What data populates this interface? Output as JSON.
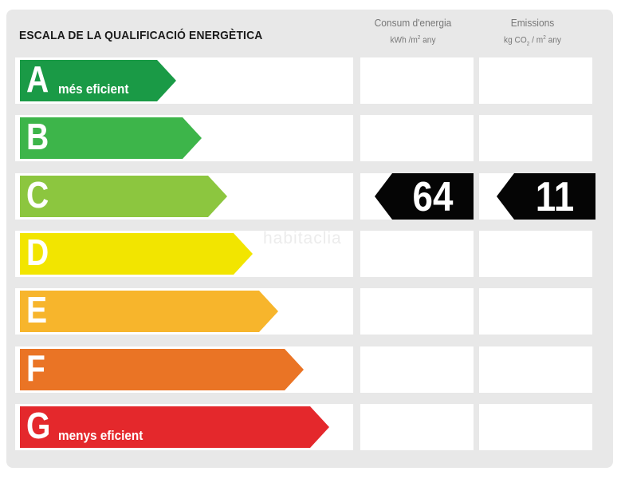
{
  "title": "ESCALA DE LA QUALIFICACIÓ ENERGÈTICA",
  "columns": {
    "consum": {
      "label": "Consum d'energia",
      "unit_prefix": "kWh /m",
      "unit_exp": "2",
      "unit_suffix": " any"
    },
    "emissions": {
      "label": "Emissions",
      "unit_prefix": "kg CO",
      "unit_sub": "2",
      "unit_mid": " / m",
      "unit_exp": "2",
      "unit_suffix": " any"
    }
  },
  "watermark": "habitaclia",
  "classes": [
    {
      "letter": "A",
      "note": "més eficient",
      "color": "#1a9a46"
    },
    {
      "letter": "B",
      "note": "",
      "color": "#3db54a"
    },
    {
      "letter": "C",
      "note": "",
      "color": "#8cc63f"
    },
    {
      "letter": "D",
      "note": "",
      "color": "#f2e500"
    },
    {
      "letter": "E",
      "note": "",
      "color": "#f7b52c"
    },
    {
      "letter": "F",
      "note": "",
      "color": "#ea7425"
    },
    {
      "letter": "G",
      "note": "menys eficient",
      "color": "#e4282c"
    }
  ],
  "rating": {
    "class": "C",
    "consum_value": "64",
    "emissions_value": "11"
  }
}
